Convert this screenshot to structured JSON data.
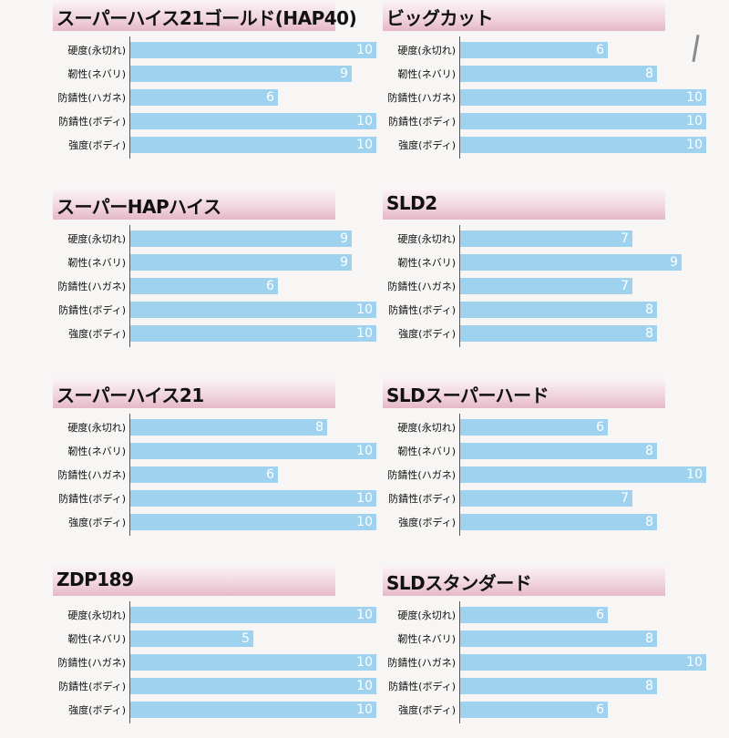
{
  "chart_data": [
    {
      "type": "bar",
      "title": "スーパーハイス21ゴールド(HAP40)",
      "categories": [
        "硬度(永切れ)",
        "靭性(ネバリ)",
        "防錆性(ハガネ)",
        "防錆性(ボディ)",
        "強度(ボディ)"
      ],
      "values": [
        10,
        9,
        6,
        10,
        10
      ],
      "xlim": [
        0,
        10
      ]
    },
    {
      "type": "bar",
      "title": "ビッグカット",
      "categories": [
        "硬度(永切れ)",
        "靭性(ネバリ)",
        "防錆性(ハガネ)",
        "防錆性(ボディ)",
        "強度(ボディ)"
      ],
      "values": [
        6,
        8,
        10,
        10,
        10
      ],
      "xlim": [
        0,
        10
      ]
    },
    {
      "type": "bar",
      "title": "スーパーHAPハイス",
      "categories": [
        "硬度(永切れ)",
        "靭性(ネバリ)",
        "防錆性(ハガネ)",
        "防錆性(ボディ)",
        "強度(ボディ)"
      ],
      "values": [
        9,
        9,
        6,
        10,
        10
      ],
      "xlim": [
        0,
        10
      ]
    },
    {
      "type": "bar",
      "title": "SLD2",
      "categories": [
        "硬度(永切れ)",
        "靭性(ネバリ)",
        "防錆性(ハガネ)",
        "防錆性(ボディ)",
        "強度(ボディ)"
      ],
      "values": [
        7,
        9,
        7,
        8,
        8
      ],
      "xlim": [
        0,
        10
      ]
    },
    {
      "type": "bar",
      "title": "スーパーハイス21",
      "categories": [
        "硬度(永切れ)",
        "靭性(ネバリ)",
        "防錆性(ハガネ)",
        "防錆性(ボディ)",
        "強度(ボディ)"
      ],
      "values": [
        8,
        10,
        6,
        10,
        10
      ],
      "xlim": [
        0,
        10
      ]
    },
    {
      "type": "bar",
      "title": "SLDスーパーハード",
      "categories": [
        "硬度(永切れ)",
        "靭性(ネバリ)",
        "防錆性(ハガネ)",
        "防錆性(ボディ)",
        "強度(ボディ)"
      ],
      "values": [
        6,
        8,
        10,
        7,
        8
      ],
      "xlim": [
        0,
        10
      ]
    },
    {
      "type": "bar",
      "title": "ZDP189",
      "categories": [
        "硬度(永切れ)",
        "靭性(ネバリ)",
        "防錆性(ハガネ)",
        "防錆性(ボディ)",
        "強度(ボディ)"
      ],
      "values": [
        10,
        5,
        10,
        10,
        10
      ],
      "xlim": [
        0,
        10
      ]
    },
    {
      "type": "bar",
      "title": "SLDスタンダード",
      "categories": [
        "硬度(永切れ)",
        "靭性(ネバリ)",
        "防錆性(ハガネ)",
        "防錆性(ボディ)",
        "強度(ボディ)"
      ],
      "values": [
        6,
        8,
        10,
        8,
        6
      ],
      "xlim": [
        0,
        10
      ]
    }
  ]
}
